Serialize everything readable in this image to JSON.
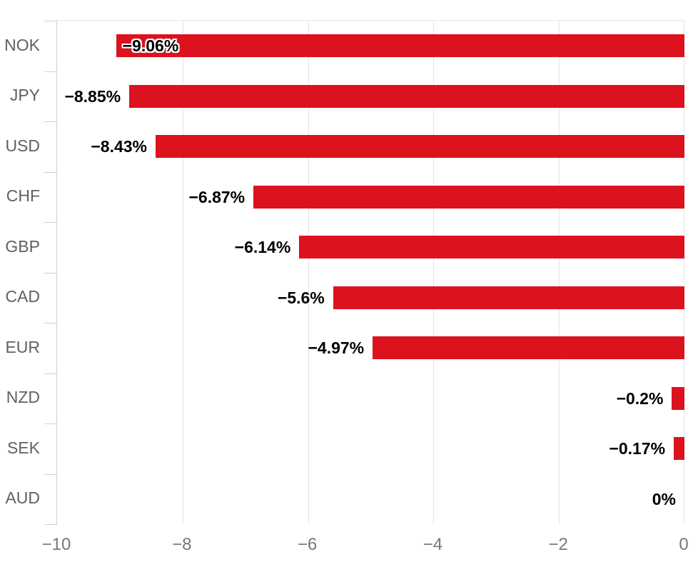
{
  "chart_data": {
    "type": "bar",
    "orientation": "horizontal",
    "title": "",
    "categories": [
      "NOK",
      "JPY",
      "USD",
      "CHF",
      "GBP",
      "CAD",
      "EUR",
      "NZD",
      "SEK",
      "AUD"
    ],
    "values": [
      -9.06,
      -8.85,
      -8.43,
      -6.87,
      -6.14,
      -5.6,
      -4.97,
      -0.2,
      -0.17,
      0
    ],
    "bar_labels": [
      "−9.06%",
      "−8.85%",
      "−8.43%",
      "−6.87%",
      "−6.14%",
      "−5.6%",
      "−4.97%",
      "−0.2%",
      "−0.17%",
      "0%"
    ],
    "bar_label_position": [
      "inside",
      "outside",
      "outside",
      "outside",
      "outside",
      "outside",
      "outside",
      "outside",
      "outside",
      "outside"
    ],
    "xlim": [
      -10,
      0
    ],
    "x_ticks": [
      -10,
      -8,
      -6,
      -4,
      -2,
      0
    ],
    "x_tick_labels": [
      "−10",
      "−8",
      "−6",
      "−4",
      "−2",
      "0"
    ],
    "gridlines": "vertical",
    "legend": "none",
    "xlabel": "",
    "ylabel": ""
  },
  "style": {
    "bar_color": "#dc121f",
    "data_label_color": "#000000",
    "category_label_color": "#5e6166",
    "axis_tick_label_color": "#75777b",
    "axis_line_color": "#c9d2da",
    "gridline_color": "#e4e4e4",
    "background_color": "#ffffff"
  }
}
